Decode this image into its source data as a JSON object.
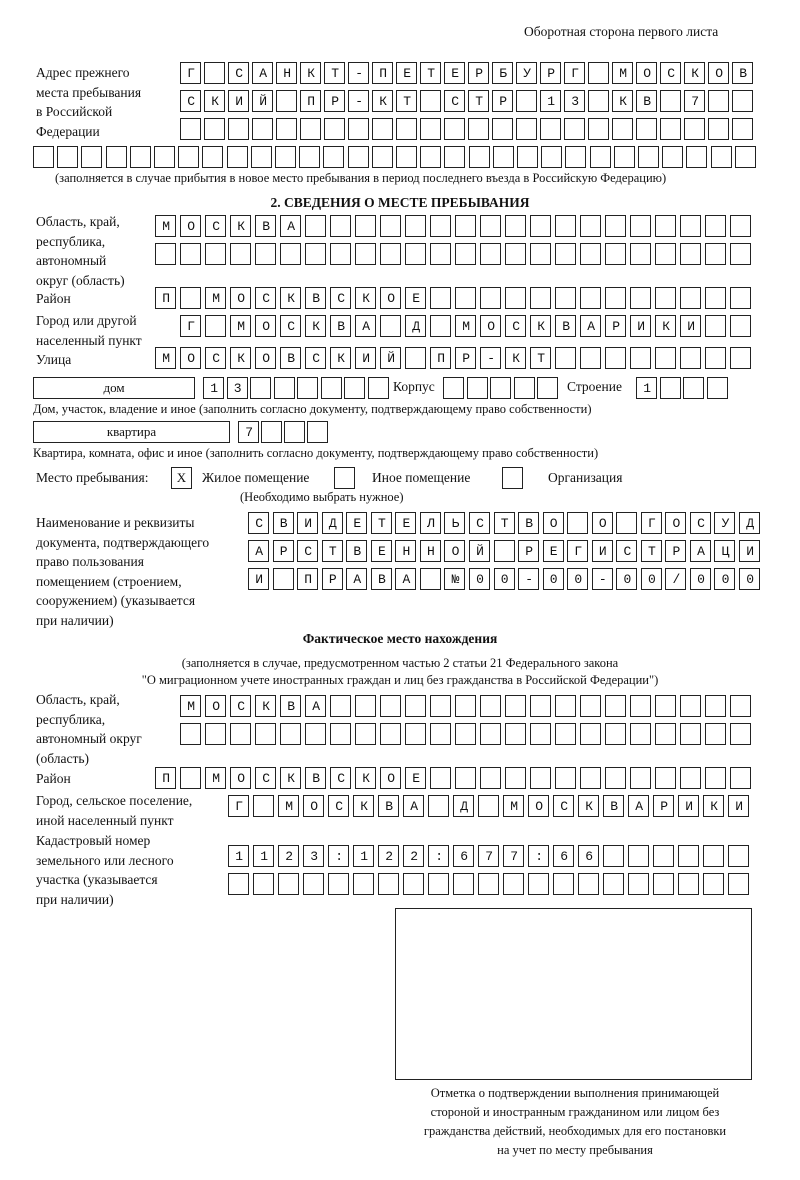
{
  "header": "Оборотная сторона первого листа",
  "prev_address": {
    "label": [
      "Адрес прежнего",
      "места пребывания",
      "в Российской",
      "Федерации"
    ],
    "rows": [
      "Г САНКТ-ПЕТЕРБУРГ МОСКОВ",
      "СКИЙ ПР-КТ СТР 13 КВ 7",
      "",
      ""
    ],
    "note": "(заполняется в случае прибытия в новое место пребывания в период последнего въезда в Российскую Федерацию)"
  },
  "section2": {
    "title": "2. СВЕДЕНИЯ О МЕСТЕ ПРЕБЫВАНИЯ",
    "region_label": [
      "Область, край,",
      "республика,",
      "автономный",
      "округ (область)"
    ],
    "region_rows": [
      "МОСКВА",
      ""
    ],
    "district_label": "Район",
    "district": "П МОСКВСКОЕ",
    "city_label": [
      "Город или другой",
      "населенный пункт"
    ],
    "city": "Г МОСКВА Д МОСКВАРИКИ",
    "street_label": "Улица",
    "street": "МОСКОВСКИЙ ПР-КТ",
    "house_type": "дом",
    "house": "13",
    "korpus_label": "Корпус",
    "korpus": "",
    "building_label": "Строение",
    "building": "1",
    "house_note": "Дом, участок, владение и иное (заполнить согласно документу, подтверждающему право собственности)",
    "apt_type": "квартира",
    "apt": "7",
    "apt_note": "Квартира, комната, офис и иное (заполнить согласно документу, подтверждающему право собственности)",
    "stay_label": "Место пребывания:",
    "stay_options": [
      {
        "label": "Жилое помещение",
        "mark": "X"
      },
      {
        "label": "Иное помещение",
        "mark": ""
      },
      {
        "label": "Организация",
        "mark": ""
      }
    ],
    "stay_note": "(Необходимо выбрать нужное)",
    "doc_label": [
      "Наименование и реквизиты",
      "документа, подтверждающего",
      "право пользования",
      "помещением (строением,",
      "сооружением) (указывается",
      "при наличии)"
    ],
    "doc_rows": [
      "СВИДЕТЕЛЬСТВО О ГОСУД",
      "АРСТВЕННОЙ РЕГИСТРАЦИ",
      "И ПРАВА №00-00-00/000"
    ]
  },
  "actual": {
    "title": "Фактическое место нахождения",
    "note": [
      "(заполняется в случае, предусмотренном частью 2 статьи 21 Федерального закона",
      "\"О миграционном учете иностранных граждан и лиц без гражданства в Российской Федерации\")"
    ],
    "region_label": [
      "Область, край,",
      "республика,",
      "автономный округ",
      "(область)"
    ],
    "region_rows": [
      "МОСКВА",
      ""
    ],
    "district_label": "Район",
    "district": "П МОСКВСКОЕ",
    "city_label": [
      "Город, сельское поселение,",
      "иной населенный пункт"
    ],
    "city": "Г МОСКВА Д МОСКВАРИКИ",
    "cadastre_label": [
      "Кадастровый номер",
      "земельного или лесного",
      "участка (указывается",
      "при наличии)"
    ],
    "cadastre_rows": [
      "1123:122:677:66",
      ""
    ]
  },
  "stamp_caption": [
    "Отметка о подтверждении выполнения принимающей",
    "стороной и иностранным гражданином или лицом без",
    "гражданства действий, необходимых для его постановки",
    "на учет по месту пребывания"
  ]
}
